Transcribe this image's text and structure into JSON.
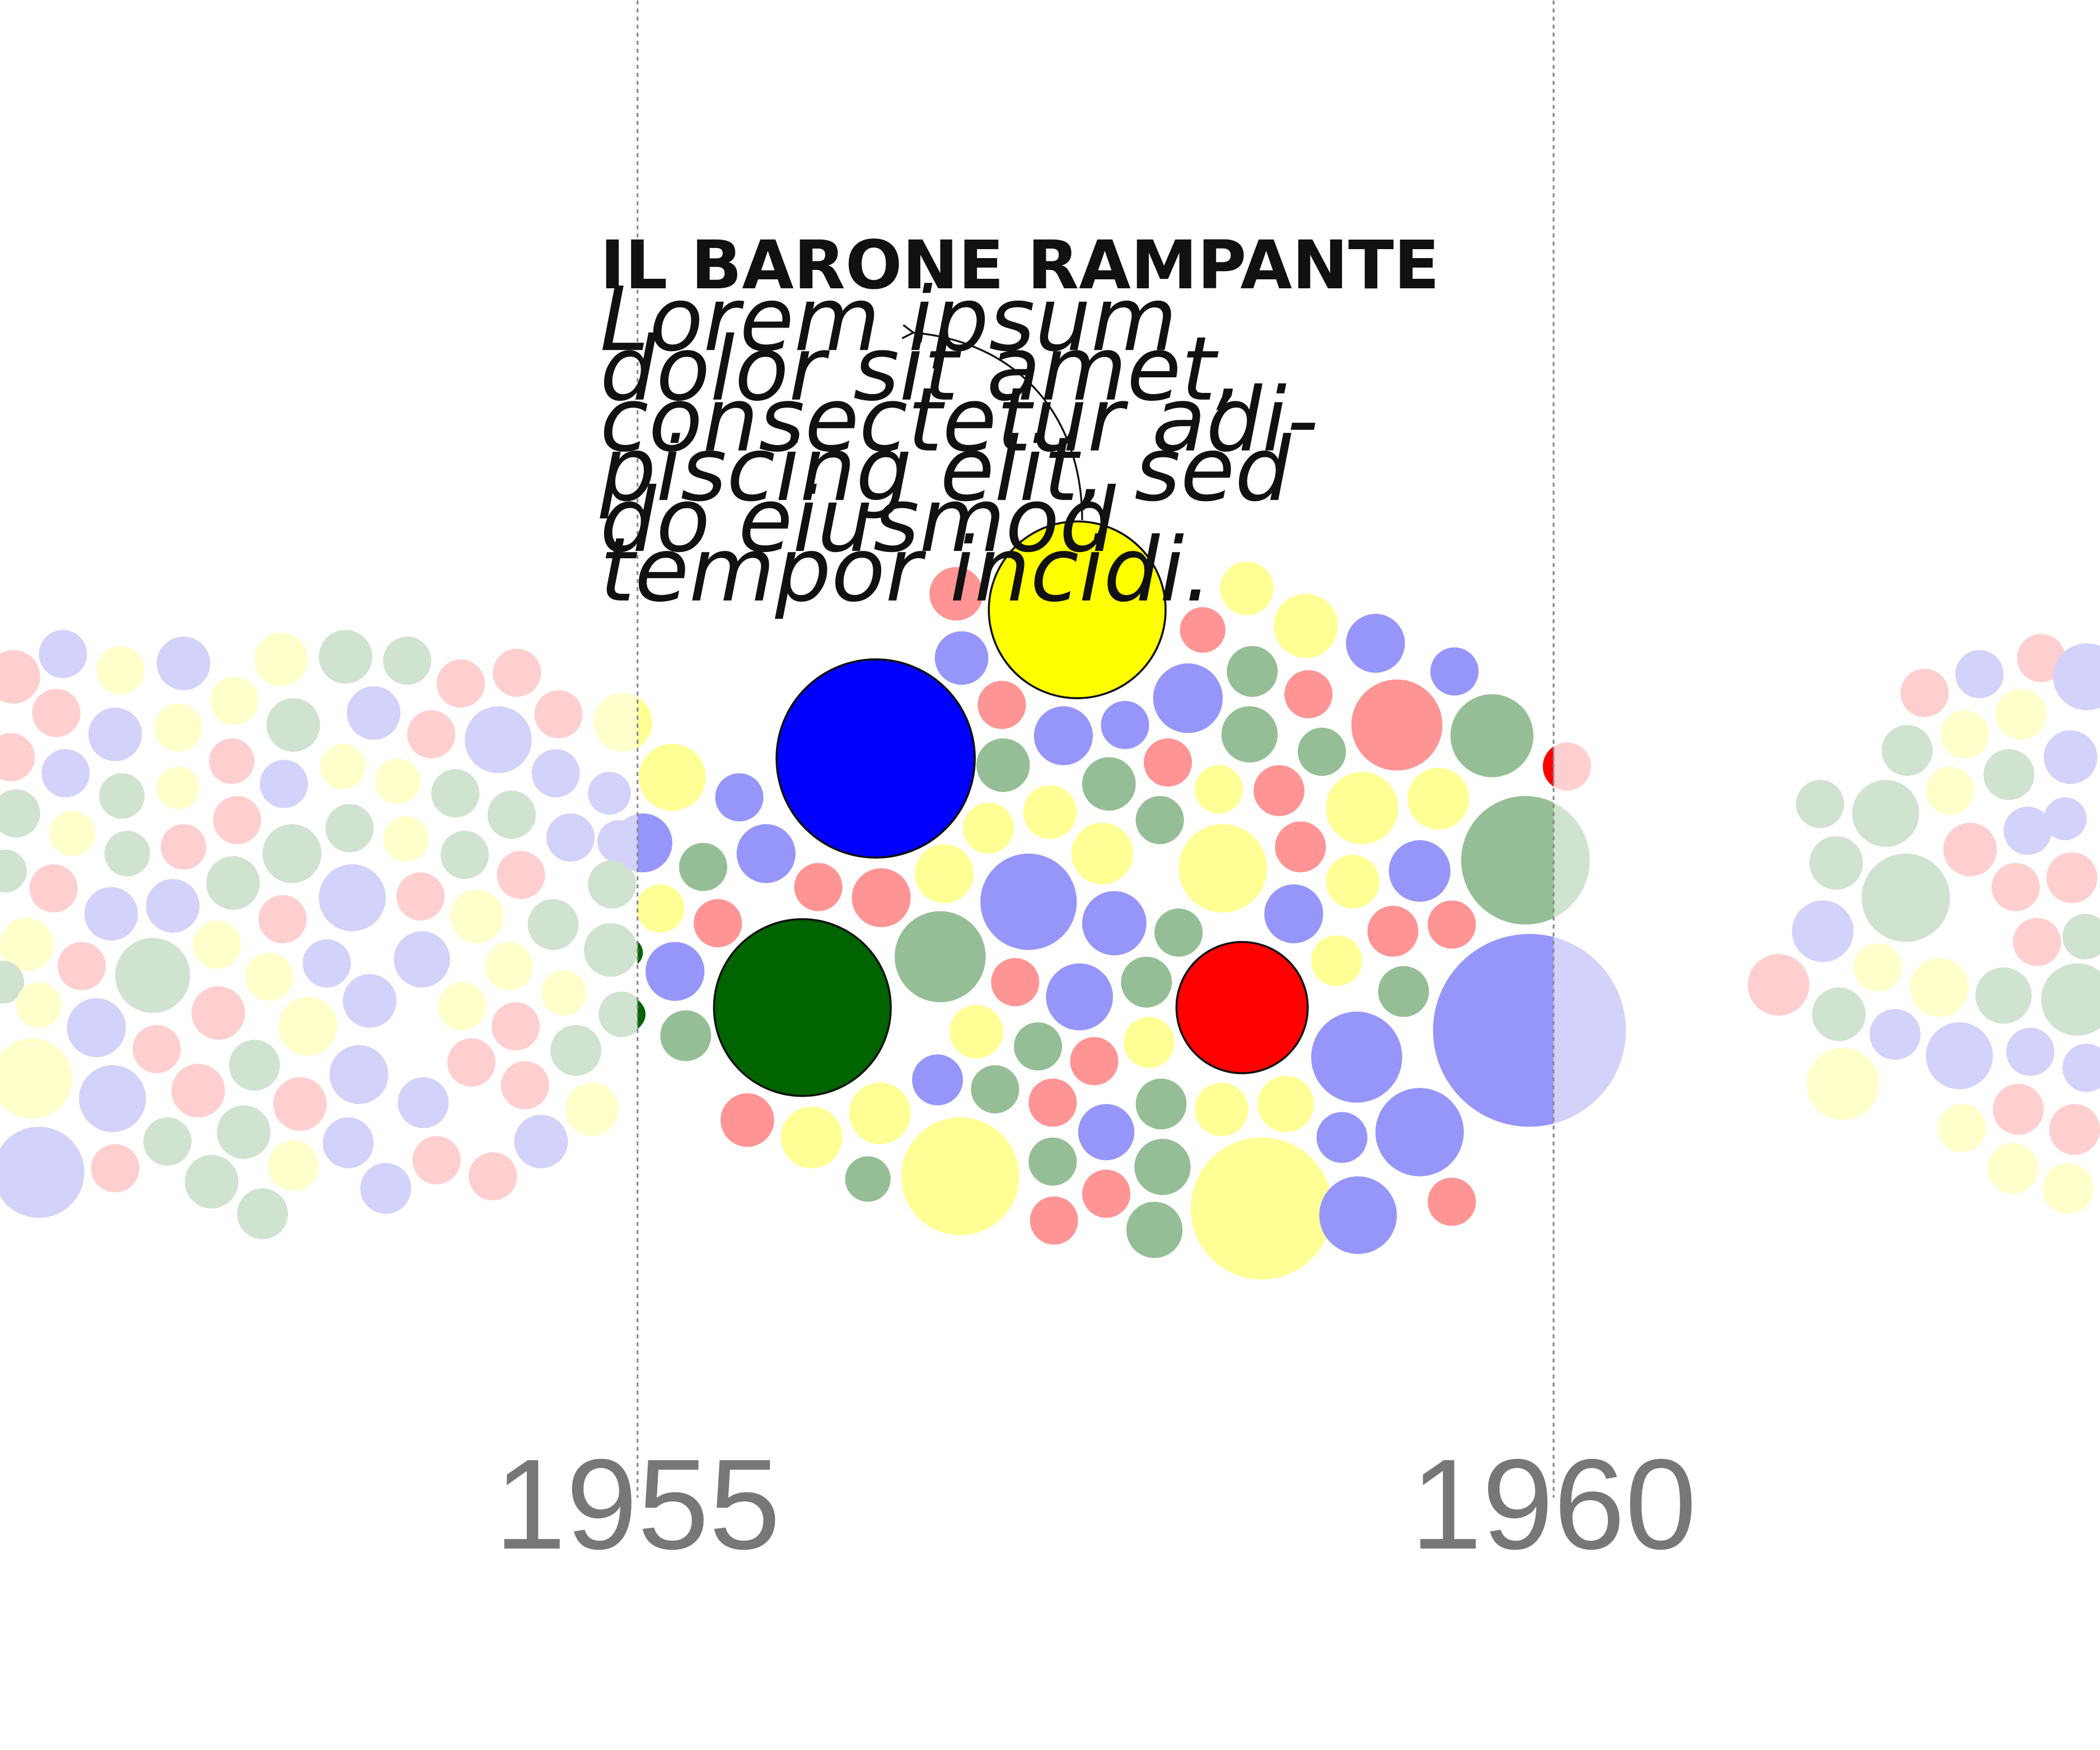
{
  "chart_data": {
    "type": "bubble-timeline",
    "title": "",
    "x_ticks": [
      "1955",
      "1960"
    ],
    "colors": {
      "red": "#ff0000",
      "blue": "#0000ff",
      "green": "#006400",
      "yellow": "#ffff00"
    },
    "highlighted_items": [
      {
        "name": "IL BARONE RAMPANTE",
        "color": "yellow",
        "year": 1957.4
      },
      {
        "name": "",
        "color": "blue",
        "year": 1956.3
      },
      {
        "name": "",
        "color": "green",
        "year": 1955.9
      },
      {
        "name": "",
        "color": "red",
        "year": 1958.3
      }
    ],
    "annotation": {
      "title": "IL BARONE RAMPANTE",
      "lines": [
        "Lorem ipsum",
        "dolor sit amet,",
        "consectetur adi-",
        "piscing elit, sed",
        "do eiusmod",
        "tempor incidi."
      ]
    }
  }
}
